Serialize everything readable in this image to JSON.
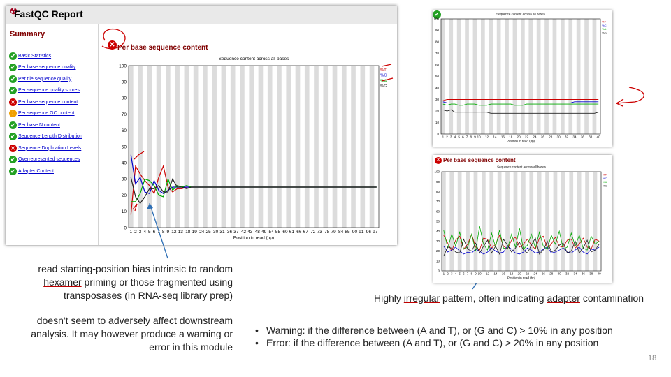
{
  "report": {
    "title": "FastQC Report",
    "summary_title": "Summary",
    "modules": [
      {
        "label": "Basic Statistics",
        "status": "pass"
      },
      {
        "label": "Per base sequence quality",
        "status": "pass"
      },
      {
        "label": "Per tile sequence quality",
        "status": "pass"
      },
      {
        "label": "Per sequence quality scores",
        "status": "pass"
      },
      {
        "label": "Per base sequence content",
        "status": "fail"
      },
      {
        "label": "Per sequence GC content",
        "status": "warn"
      },
      {
        "label": "Per base N content",
        "status": "pass"
      },
      {
        "label": "Sequence Length Distribution",
        "status": "pass"
      },
      {
        "label": "Sequence Duplication Levels",
        "status": "fail"
      },
      {
        "label": "Overrepresented sequences",
        "status": "pass"
      },
      {
        "label": "Adapter Content",
        "status": "pass"
      }
    ],
    "module_title": "Per base sequence content",
    "status_icons": {
      "pass": "check-icon",
      "fail": "cross-icon",
      "warn": "exclamation-icon"
    },
    "status_colors": {
      "pass": "#22a022",
      "fail": "#cc0000",
      "warn": "#f0a000"
    }
  },
  "colors": {
    "T": "#cc0000",
    "C": "#0000cc",
    "A": "#00aa00",
    "G": "#222222",
    "annotation": "#cc0000",
    "arrow": "#2e6fb5"
  },
  "chart_data": [
    {
      "id": "main",
      "type": "line",
      "title": "Sequence content across all bases",
      "xlabel": "Position in read (bp)",
      "ylabel": "",
      "ylim": [
        0,
        100
      ],
      "yticks": [
        0,
        10,
        20,
        30,
        40,
        50,
        60,
        70,
        80,
        90,
        100
      ],
      "categories": [
        "1",
        "2",
        "3",
        "4",
        "5",
        "6",
        "7",
        "8",
        "9",
        "10-11",
        "12-13",
        "14-15",
        "16-17",
        "18-19",
        "20-21",
        "22-23",
        "24-25",
        "26-27",
        "28-29",
        "30-31",
        "32-33",
        "34-35",
        "36-37",
        "38-39",
        "40-41",
        "42-43",
        "44-45",
        "46-47",
        "48-49",
        "50-51",
        "52-53",
        "54-55",
        "56-57",
        "58-59",
        "60-61",
        "62-63",
        "64-65",
        "66-67",
        "68-69",
        "70-71",
        "72-73",
        "74-75",
        "76-77",
        "78-79",
        "80-81",
        "82-83",
        "84-85",
        "86-87",
        "88-89",
        "90-91",
        "92-93",
        "94-95",
        "96-97",
        "98-99"
      ],
      "xticklabels": [
        "1",
        "2",
        "3",
        "4",
        "5",
        "6",
        "7",
        "8",
        "9",
        "12-13",
        "18-19",
        "24-25",
        "30-31",
        "36-37",
        "42-43",
        "48-49",
        "54-55",
        "60-61",
        "66-67",
        "72-73",
        "78-79",
        "84-85",
        "90-91",
        "96-97"
      ],
      "legend": [
        "%T",
        "%C",
        "%A",
        "%G"
      ],
      "grid": true,
      "legend_position": "top-right",
      "series": [
        {
          "name": "%T",
          "values": [
            8,
            38,
            33,
            29,
            26,
            21,
            31,
            38,
            25,
            22,
            24,
            24,
            25,
            25,
            25,
            25,
            25,
            25,
            25,
            25,
            25,
            25,
            25,
            25,
            25,
            25,
            25,
            25,
            25,
            25,
            25,
            25,
            25,
            25,
            25,
            25,
            25,
            25,
            25,
            25,
            25,
            25,
            25,
            25,
            25,
            25,
            25,
            25,
            25,
            25,
            25,
            25,
            25,
            25
          ]
        },
        {
          "name": "%C",
          "values": [
            45,
            27,
            31,
            22,
            21,
            29,
            23,
            21,
            23,
            25,
            25,
            25,
            25,
            25,
            25,
            25,
            25,
            25,
            25,
            25,
            25,
            25,
            25,
            25,
            25,
            25,
            25,
            25,
            25,
            25,
            25,
            25,
            25,
            25,
            25,
            25,
            25,
            25,
            25,
            25,
            25,
            25,
            25,
            25,
            25,
            25,
            25,
            25,
            25,
            25,
            25,
            25,
            25,
            25
          ]
        },
        {
          "name": "%A",
          "values": [
            16,
            16,
            21,
            30,
            29,
            26,
            20,
            19,
            30,
            23,
            26,
            25,
            26,
            25,
            25,
            25,
            25,
            25,
            25,
            25,
            25,
            25,
            25,
            25,
            25,
            25,
            25,
            25,
            25,
            25,
            25,
            25,
            25,
            25,
            25,
            25,
            25,
            25,
            25,
            25,
            25,
            25,
            25,
            25,
            25,
            25,
            25,
            25,
            25,
            25,
            25,
            25,
            25,
            25
          ]
        },
        {
          "name": "%G",
          "values": [
            31,
            19,
            15,
            19,
            24,
            24,
            26,
            22,
            22,
            30,
            25,
            25,
            24,
            25,
            25,
            25,
            25,
            25,
            25,
            25,
            25,
            25,
            25,
            25,
            25,
            25,
            25,
            25,
            25,
            25,
            25,
            25,
            25,
            25,
            25,
            25,
            25,
            25,
            25,
            25,
            25,
            25,
            25,
            25,
            25,
            25,
            25,
            25,
            25,
            25,
            25,
            25,
            25,
            25
          ]
        }
      ]
    },
    {
      "id": "good",
      "type": "line",
      "title": "Sequence content across all bases",
      "xlabel": "Position in read (bp)",
      "ylabel": "",
      "ylim": [
        0,
        100
      ],
      "yticks": [
        0,
        10,
        20,
        30,
        40,
        50,
        60,
        70,
        80,
        90,
        100
      ],
      "categories": [
        "1",
        "2",
        "3",
        "4",
        "5",
        "6",
        "7",
        "8",
        "9",
        "10",
        "11",
        "12",
        "13",
        "14",
        "15",
        "16",
        "17",
        "18",
        "19",
        "20",
        "21",
        "22",
        "23",
        "24",
        "25",
        "26",
        "27",
        "28",
        "29",
        "30",
        "31",
        "32",
        "33",
        "34",
        "35",
        "36",
        "37",
        "38",
        "39",
        "40"
      ],
      "xticklabels": [
        "1",
        "2",
        "3",
        "4",
        "5",
        "6",
        "7",
        "8",
        "9",
        "10",
        "12",
        "14",
        "16",
        "18",
        "20",
        "22",
        "24",
        "26",
        "28",
        "30",
        "32",
        "34",
        "36",
        "38",
        "40"
      ],
      "legend": [
        "%T",
        "%C",
        "%A",
        "%G"
      ],
      "grid": true,
      "legend_position": "top-right",
      "series": [
        {
          "name": "%T",
          "values": [
            29,
            30,
            30,
            30,
            30,
            30,
            30,
            30,
            30,
            30,
            30,
            30,
            30,
            30,
            30,
            30,
            30,
            30,
            30,
            30,
            30,
            30,
            30,
            30,
            30,
            30,
            30,
            30,
            30,
            30,
            30,
            30,
            30,
            30,
            30,
            30,
            30,
            30,
            30,
            30
          ]
        },
        {
          "name": "%C",
          "values": [
            28,
            27,
            27,
            27,
            27,
            27,
            27,
            27,
            27,
            27,
            27,
            27,
            27,
            27,
            27,
            27,
            27,
            27,
            27,
            27,
            27,
            27,
            27,
            27,
            27,
            27,
            27,
            27,
            27,
            27,
            27,
            27,
            27,
            28,
            28,
            28,
            28,
            28,
            28,
            28
          ]
        },
        {
          "name": "%A",
          "values": [
            26,
            25,
            26,
            26,
            25,
            25,
            26,
            26,
            26,
            25,
            25,
            25,
            26,
            26,
            26,
            26,
            26,
            26,
            25,
            25,
            25,
            26,
            26,
            26,
            26,
            26,
            26,
            26,
            26,
            26,
            26,
            26,
            26,
            26,
            26,
            26,
            26,
            26,
            26,
            26
          ]
        },
        {
          "name": "%G",
          "values": [
            21,
            20,
            21,
            19,
            19,
            19,
            19,
            19,
            19,
            19,
            19,
            19,
            18,
            18,
            18,
            18,
            18,
            18,
            18,
            18,
            18,
            18,
            18,
            18,
            18,
            18,
            18,
            18,
            18,
            18,
            18,
            18,
            18,
            18,
            18,
            18,
            18,
            18,
            18,
            19
          ]
        }
      ]
    },
    {
      "id": "bad",
      "type": "line",
      "title": "Sequence content across all bases",
      "xlabel": "Position in read (bp)",
      "ylabel": "",
      "ylim": [
        0,
        100
      ],
      "yticks": [
        0,
        10,
        20,
        30,
        40,
        50,
        60,
        70,
        80,
        90,
        100
      ],
      "categories": [
        "1",
        "2",
        "3",
        "4",
        "5",
        "6",
        "7",
        "8",
        "9",
        "10",
        "11",
        "12",
        "13",
        "14",
        "15",
        "16",
        "17",
        "18",
        "19",
        "20",
        "21",
        "22",
        "23",
        "24",
        "25",
        "26",
        "27",
        "28",
        "29",
        "30",
        "31",
        "32",
        "33",
        "34",
        "35",
        "36",
        "37",
        "38",
        "39",
        "40"
      ],
      "xticklabels": [
        "1",
        "2",
        "3",
        "4",
        "5",
        "6",
        "7",
        "8",
        "9",
        "10",
        "12",
        "14",
        "16",
        "18",
        "20",
        "22",
        "24",
        "26",
        "28",
        "30",
        "32",
        "34",
        "36",
        "38",
        "40"
      ],
      "legend": [
        "%T",
        "%C",
        "%A",
        "%G"
      ],
      "grid": true,
      "legend_position": "top-right",
      "series": [
        {
          "name": "%T",
          "values": [
            36,
            28,
            20,
            31,
            35,
            22,
            27,
            37,
            24,
            21,
            33,
            32,
            23,
            27,
            36,
            25,
            22,
            31,
            34,
            24,
            27,
            32,
            26,
            22,
            33,
            35,
            23,
            27,
            34,
            25,
            24,
            31,
            32,
            23,
            27,
            33,
            24,
            22,
            32,
            30
          ]
        },
        {
          "name": "%C",
          "values": [
            25,
            19,
            21,
            24,
            20,
            17,
            19,
            18,
            22,
            20,
            17,
            19,
            23,
            20,
            18,
            19,
            25,
            22,
            18,
            17,
            19,
            23,
            21,
            18,
            19,
            22,
            24,
            18,
            19,
            21,
            23,
            19,
            18,
            21,
            24,
            19,
            17,
            22,
            21,
            24
          ]
        },
        {
          "name": "%A",
          "values": [
            41,
            23,
            37,
            25,
            39,
            22,
            24,
            37,
            20,
            45,
            27,
            21,
            38,
            24,
            41,
            23,
            22,
            37,
            24,
            43,
            22,
            26,
            37,
            23,
            39,
            25,
            22,
            36,
            27,
            40,
            22,
            24,
            38,
            25,
            36,
            23,
            21,
            35,
            27,
            30
          ]
        },
        {
          "name": "%G",
          "values": [
            15,
            24,
            23,
            19,
            18,
            32,
            22,
            20,
            28,
            18,
            25,
            31,
            18,
            25,
            17,
            32,
            26,
            19,
            23,
            29,
            21,
            18,
            26,
            33,
            17,
            21,
            30,
            19,
            21,
            26,
            28,
            18,
            20,
            30,
            18,
            23,
            31,
            19,
            21,
            27
          ]
        }
      ]
    }
  ],
  "notes": {
    "bias": [
      "read starting-position bias intrinsic to random ",
      "hexamer",
      " priming or those fragmented using ",
      "transposases",
      " (in RNA-seq library prep)"
    ],
    "effect": "doesn't seem to adversely affect downstream analysis. It may however produce a warning or error in this module",
    "irregular": [
      "Highly ",
      "irregular",
      " pattern, often indicating ",
      "adapter",
      " contamination"
    ]
  },
  "bullets": [
    "Warning: if the difference between (A and T), or (G and C) >  10% in any position",
    "Error: if the difference between (A and T), or (G and C) >  20% in any position"
  ],
  "slide_number": "18"
}
